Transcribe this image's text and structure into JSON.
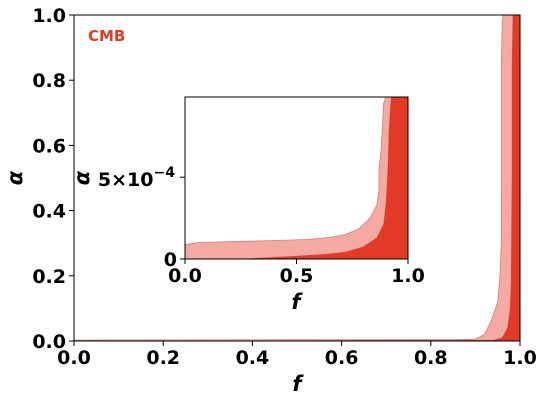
{
  "colors": {
    "inner_2sigma": "#f4a9a3",
    "inner_1sigma": "#e33a27",
    "contour_edge": "#c44a3a",
    "annotation": "#e33a27",
    "background": "#ffffff",
    "axes": "#000000"
  },
  "chart_data": [
    {
      "type": "area",
      "panel": "main",
      "annotation": "CMB",
      "xlabel": "f",
      "ylabel": "α",
      "xlim": [
        0.0,
        1.0
      ],
      "ylim": [
        0.0,
        1.0
      ],
      "xticks": [
        {
          "value": 0.0,
          "label": "0.0"
        },
        {
          "value": 0.2,
          "label": "0.2"
        },
        {
          "value": 0.4,
          "label": "0.4"
        },
        {
          "value": 0.6,
          "label": "0.6"
        },
        {
          "value": 0.8,
          "label": "0.8"
        },
        {
          "value": 1.0,
          "label": "1.0"
        }
      ],
      "yticks": [
        {
          "value": 0.0,
          "label": "0.0"
        },
        {
          "value": 0.2,
          "label": "0.2"
        },
        {
          "value": 0.4,
          "label": "0.4"
        },
        {
          "value": 0.6,
          "label": "0.6"
        },
        {
          "value": 0.8,
          "label": "0.8"
        },
        {
          "value": 1.0,
          "label": "1.0"
        }
      ],
      "grid": false,
      "regions": [
        {
          "level": "outer",
          "color_key": "inner_2sigma",
          "boundary": [
            [
              0.0,
              0.0
            ],
            [
              0.0,
              0.003
            ],
            [
              0.5,
              0.004
            ],
            [
              0.85,
              0.004
            ],
            [
              0.9,
              0.006
            ],
            [
              0.92,
              0.02
            ],
            [
              0.935,
              0.06
            ],
            [
              0.95,
              0.12
            ],
            [
              0.955,
              0.2
            ],
            [
              0.958,
              0.3
            ],
            [
              0.958,
              0.6
            ],
            [
              0.958,
              0.85
            ],
            [
              0.96,
              0.98
            ],
            [
              0.962,
              1.0
            ],
            [
              1.0,
              1.0
            ],
            [
              1.0,
              0.0
            ]
          ]
        },
        {
          "level": "inner",
          "color_key": "inner_1sigma",
          "boundary": [
            [
              0.25,
              0.0
            ],
            [
              0.7,
              0.002
            ],
            [
              0.94,
              0.003
            ],
            [
              0.96,
              0.01
            ],
            [
              0.972,
              0.04
            ],
            [
              0.978,
              0.1
            ],
            [
              0.98,
              0.18
            ],
            [
              0.982,
              0.5
            ],
            [
              0.982,
              0.85
            ],
            [
              0.984,
              1.0
            ],
            [
              1.0,
              1.0
            ],
            [
              1.0,
              0.0
            ]
          ]
        }
      ]
    },
    {
      "type": "area",
      "panel": "inset",
      "xlabel": "f",
      "ylabel": "α",
      "xlim": [
        0.0,
        1.0
      ],
      "ylim": [
        0.0,
        0.00099
      ],
      "xticks": [
        {
          "value": 0.0,
          "label": "0.0"
        },
        {
          "value": 0.5,
          "label": "0.5"
        },
        {
          "value": 1.0,
          "label": "1.0"
        }
      ],
      "yticks": [
        {
          "value": 0.0,
          "label": "0",
          "exponent": ""
        },
        {
          "value": 0.0005,
          "label": "5×10",
          "exponent": "−4"
        }
      ],
      "grid": false,
      "regions": [
        {
          "level": "outer",
          "color_key": "inner_2sigma",
          "boundary": [
            [
              0.0,
              0.0
            ],
            [
              0.0,
              8.8e-05
            ],
            [
              0.06,
              0.000101
            ],
            [
              0.2,
              0.000106
            ],
            [
              0.4,
              0.000113
            ],
            [
              0.55,
              0.00012
            ],
            [
              0.65,
              0.000132
            ],
            [
              0.72,
              0.00015
            ],
            [
              0.78,
              0.000185
            ],
            [
              0.83,
              0.00025
            ],
            [
              0.86,
              0.00033
            ],
            [
              0.87,
              0.00042
            ],
            [
              0.87,
              0.00055
            ],
            [
              0.88,
              0.00068
            ],
            [
              0.885,
              0.00081
            ],
            [
              0.89,
              0.00095
            ],
            [
              0.9,
              0.00099
            ],
            [
              1.0,
              0.00099
            ],
            [
              1.0,
              0.0
            ]
          ]
        },
        {
          "level": "inner",
          "color_key": "inner_1sigma",
          "boundary": [
            [
              0.25,
              0.0
            ],
            [
              0.5,
              1.8e-05
            ],
            [
              0.62,
              2.8e-05
            ],
            [
              0.72,
              4.2e-05
            ],
            [
              0.8,
              7.5e-05
            ],
            [
              0.86,
              0.00013
            ],
            [
              0.89,
              0.00021
            ],
            [
              0.9,
              0.00032
            ],
            [
              0.905,
              0.00042
            ],
            [
              0.91,
              0.00056
            ],
            [
              0.915,
              0.00078
            ],
            [
              0.92,
              0.00091
            ],
            [
              0.925,
              0.00099
            ],
            [
              1.0,
              0.00099
            ],
            [
              1.0,
              0.0
            ]
          ]
        }
      ]
    }
  ]
}
